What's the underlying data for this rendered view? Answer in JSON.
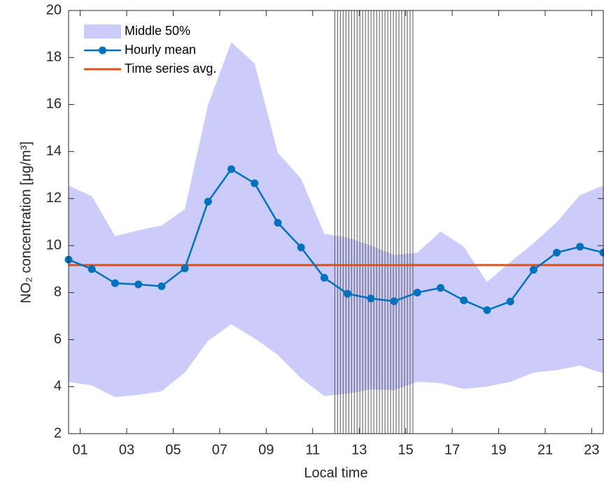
{
  "chart_data": {
    "type": "line",
    "xlabel": "Local time",
    "ylabel": "NO₂ concentration [μg/m³]",
    "x": [
      0.5,
      1.5,
      2.5,
      3.5,
      4.5,
      5.5,
      6.5,
      7.5,
      8.5,
      9.5,
      10.5,
      11.5,
      12.5,
      13.5,
      14.5,
      15.5,
      16.5,
      17.5,
      18.5,
      19.5,
      20.5,
      21.5,
      22.5,
      23.5
    ],
    "xlim": [
      0.5,
      23.5
    ],
    "xticks": [
      {
        "value": 1,
        "label": "01"
      },
      {
        "value": 3,
        "label": "03"
      },
      {
        "value": 5,
        "label": "05"
      },
      {
        "value": 7,
        "label": "07"
      },
      {
        "value": 9,
        "label": "09"
      },
      {
        "value": 11,
        "label": "11"
      },
      13,
      15,
      17,
      19,
      21,
      23
    ],
    "ylim": [
      2,
      20
    ],
    "yticks": [
      2,
      4,
      6,
      8,
      10,
      12,
      14,
      16,
      18,
      20
    ],
    "series": [
      {
        "name": "Middle 50%",
        "color": "#ccccfa",
        "upper": [
          12.55,
          12.1,
          10.4,
          10.65,
          10.85,
          11.55,
          16.0,
          18.65,
          17.75,
          13.95,
          12.85,
          10.5,
          10.35,
          10.0,
          9.6,
          9.7,
          10.6,
          9.95,
          8.45,
          9.3,
          10.1,
          11.0,
          12.15,
          12.55
        ],
        "lower": [
          4.2,
          4.05,
          3.55,
          3.65,
          3.8,
          4.6,
          5.95,
          6.65,
          6.05,
          5.35,
          4.35,
          3.6,
          3.7,
          3.88,
          3.85,
          4.2,
          4.15,
          3.9,
          4.0,
          4.2,
          4.6,
          4.7,
          4.9,
          4.55
        ]
      },
      {
        "name": "Hourly mean",
        "color": "#0072bd",
        "values": [
          9.4,
          9.0,
          8.4,
          8.35,
          8.27,
          9.03,
          11.87,
          13.25,
          12.65,
          10.97,
          9.92,
          8.63,
          7.95,
          7.75,
          7.63,
          8.0,
          8.2,
          7.67,
          7.25,
          7.62,
          8.97,
          9.7,
          9.95,
          9.7
        ]
      },
      {
        "name": "Time series avg.",
        "color": "#d95319",
        "value": 9.17
      }
    ],
    "vlines": {
      "color": "#555555",
      "x": [
        11.95,
        12.07,
        12.19,
        12.31,
        12.43,
        12.55,
        12.67,
        12.79,
        12.91,
        13.03,
        13.15,
        13.27,
        13.39,
        13.51,
        13.63,
        13.75,
        13.87,
        13.99,
        14.11,
        14.23,
        14.35,
        14.47,
        14.59,
        14.71,
        14.83,
        14.95,
        15.07,
        15.19,
        15.31
      ]
    }
  }
}
